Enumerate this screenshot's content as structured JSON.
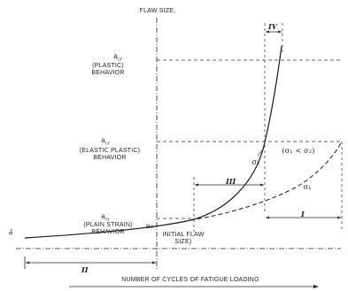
{
  "axis": {
    "y_title": "FLAW SIZE,",
    "x_title": "NUMBER OF CYCLES OF FATIGUE LOADING",
    "origin_label": "a₀"
  },
  "levels": [
    {
      "symbol": "a",
      "sub": "cr",
      "line1": "(PLASTIC)",
      "line2": "BEHAVIOR"
    },
    {
      "symbol": "a",
      "sub": "cr",
      "line1": "(ELASTIC PLASTIC)",
      "line2": "BEHAVIOR"
    },
    {
      "symbol": "a",
      "sub": "cr",
      "line1": "(PLAIN STRAIN)",
      "line2": "BEHAVIOR"
    }
  ],
  "annotations": {
    "a0": "a₀",
    "initial_flaw_line1": "INITIAL FLAW",
    "initial_flaw_line2": "SIZE)",
    "sigma_relation": "(σ₁ < σ₂)",
    "sigma2": "σ₂",
    "sigma1": "σ₁"
  },
  "regions": [
    "I",
    "II",
    "III",
    "IV"
  ],
  "colors": {
    "ink": "#222222",
    "curve": "#1a1a1a"
  }
}
